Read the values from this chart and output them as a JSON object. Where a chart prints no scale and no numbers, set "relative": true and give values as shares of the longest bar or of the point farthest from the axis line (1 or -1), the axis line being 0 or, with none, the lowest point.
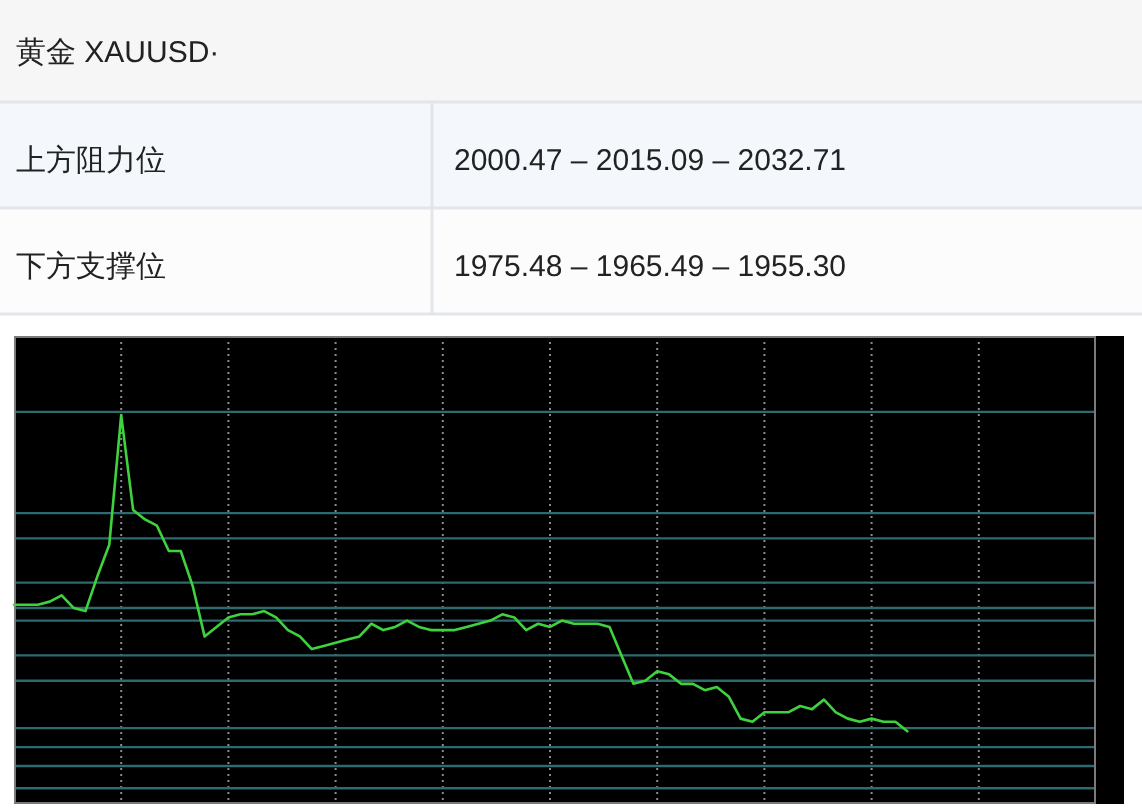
{
  "chart_data": [
    {
      "type": "other",
      "title": "黄金 XAUUSD·",
      "annotations": [
        "上方阻力位",
        "2000.47 – 2015.09 – 2032.71",
        "下方支撑位",
        "1975.48 – 1965.49 – 1955.30"
      ]
    },
    {
      "type": "line",
      "relative": true,
      "color": "#3fd23f",
      "grid": "x",
      "categories": [
        null,
        null,
        null,
        null,
        null,
        null,
        null,
        null,
        null,
        null,
        null,
        null,
        null,
        null,
        null,
        null,
        null,
        null,
        null,
        null,
        null,
        null,
        null,
        null,
        null,
        null,
        null,
        null,
        null,
        null,
        null,
        null,
        null,
        null,
        null,
        null,
        null,
        null,
        null,
        null,
        null,
        null,
        null,
        null,
        null,
        null,
        null,
        null,
        null,
        null,
        null,
        null,
        null,
        null,
        null,
        null,
        null,
        null,
        null,
        null,
        null,
        null,
        null,
        null,
        null,
        null,
        null,
        null,
        null,
        null,
        null,
        null,
        null,
        null,
        null,
        null,
        null,
        null,
        null,
        null,
        null,
        null,
        null,
        null,
        null,
        null,
        null,
        null,
        null,
        null,
        null
      ],
      "values": [
        0.4,
        0.4,
        0.4,
        0.41,
        0.43,
        0.39,
        0.38,
        0.49,
        0.59,
        1.0,
        0.7,
        0.67,
        0.65,
        0.57,
        0.57,
        0.46,
        0.3,
        0.33,
        0.36,
        0.37,
        0.37,
        0.38,
        0.36,
        0.32,
        0.3,
        0.26,
        0.27,
        0.28,
        0.29,
        0.3,
        0.34,
        0.32,
        0.33,
        0.35,
        0.33,
        0.32,
        0.32,
        0.32,
        0.33,
        0.34,
        0.35,
        0.37,
        0.36,
        0.32,
        0.34,
        0.33,
        0.35,
        0.34,
        0.34,
        0.34,
        0.33,
        0.24,
        0.15,
        0.16,
        0.19,
        0.18,
        0.15,
        0.15,
        0.13,
        0.14,
        0.11,
        0.04,
        0.03,
        0.06,
        0.06,
        0.06,
        0.08,
        0.07,
        0.1,
        0.06,
        0.04,
        0.03,
        0.04,
        0.03,
        0.03,
        0.0,
        null,
        null,
        null,
        null,
        null,
        null,
        null,
        null,
        null,
        null,
        null,
        null,
        null,
        null,
        null
      ],
      "ref_lines": [
        {
          "axis": "y",
          "value": 1.01,
          "color": "#2e6b6e"
        },
        {
          "axis": "y",
          "value": 0.69,
          "color": "#2e6b6e"
        },
        {
          "axis": "y",
          "value": 0.61,
          "color": "#2e6b6e"
        },
        {
          "axis": "y",
          "value": 0.47,
          "color": "#2e6b6e"
        },
        {
          "axis": "y",
          "value": 0.39,
          "color": "#2e6b6e"
        },
        {
          "axis": "y",
          "value": 0.35,
          "color": "#2e6b6e"
        },
        {
          "axis": "y",
          "value": 0.24,
          "color": "#2e6b6e"
        },
        {
          "axis": "y",
          "value": 0.16,
          "color": "#2e6b6e"
        },
        {
          "axis": "y",
          "value": 0.01,
          "color": "#2e6b6e"
        },
        {
          "axis": "y",
          "value": -0.05,
          "color": "#2e6b6e"
        },
        {
          "axis": "y",
          "value": -0.11,
          "color": "#2e6b6e"
        },
        {
          "axis": "y",
          "value": -0.18,
          "color": "#2e6b6e"
        }
      ]
    }
  ]
}
